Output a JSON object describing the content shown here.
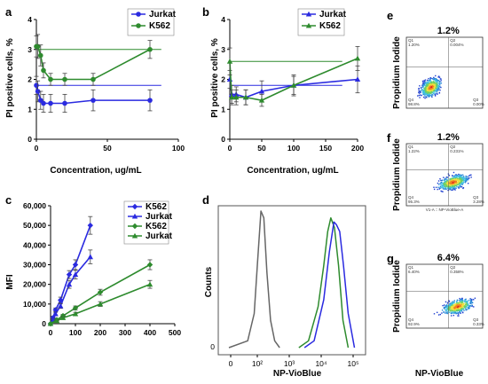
{
  "figure": {
    "panel_letters": [
      "a",
      "b",
      "c",
      "d",
      "e",
      "f",
      "g"
    ]
  },
  "chart_data": [
    {
      "panel": "a",
      "type": "line",
      "xlabel": "Concentration, ug/mL",
      "ylabel": "PI positive cells, %",
      "xlim": [
        0,
        100
      ],
      "ylim": [
        0,
        4
      ],
      "xticks": [
        0,
        50,
        100
      ],
      "yticks": [
        0,
        1,
        2,
        3,
        4
      ],
      "legend": "top-right",
      "series": [
        {
          "name": "Jurkat",
          "color": "#2a2ae0",
          "marker": "circle",
          "x": [
            0,
            1,
            3,
            5,
            10,
            20,
            40,
            80
          ],
          "y": [
            1.8,
            1.6,
            1.3,
            1.2,
            1.2,
            1.2,
            1.3,
            1.3
          ],
          "err": [
            0.3,
            0.35,
            0.3,
            0.3,
            0.3,
            0.3,
            0.35,
            0.35
          ],
          "baseline": 1.8
        },
        {
          "name": "K562",
          "color": "#2e8b2e",
          "marker": "circle",
          "x": [
            0,
            1,
            3,
            5,
            10,
            20,
            40,
            80
          ],
          "y": [
            3.1,
            3.1,
            2.8,
            2.3,
            2.0,
            2.0,
            2.0,
            3.0
          ],
          "err": [
            0.35,
            0.4,
            0.35,
            0.25,
            0.2,
            0.2,
            0.2,
            0.3
          ],
          "baseline": 3.0
        }
      ]
    },
    {
      "panel": "b",
      "type": "line",
      "xlabel": "Concentration, ug/mL",
      "ylabel": "PI positive cells, %",
      "xlim": [
        0,
        200
      ],
      "ylim": [
        0,
        4
      ],
      "xticks": [
        0,
        50,
        100,
        150,
        200
      ],
      "yticks": [
        0,
        1,
        2,
        3,
        4
      ],
      "legend": "top-right",
      "series": [
        {
          "name": "Jurkat",
          "color": "#2a2ae0",
          "marker": "triangle",
          "x": [
            0,
            3,
            10,
            25,
            50,
            100,
            200
          ],
          "y": [
            2.0,
            1.5,
            1.5,
            1.4,
            1.6,
            1.8,
            2.0
          ],
          "err": [
            0.3,
            0.3,
            0.25,
            0.25,
            0.35,
            0.3,
            0.45
          ],
          "baseline": 1.8
        },
        {
          "name": "K562",
          "color": "#2e8b2e",
          "marker": "triangle",
          "x": [
            0,
            3,
            10,
            25,
            50,
            100,
            200
          ],
          "y": [
            2.6,
            1.4,
            1.4,
            1.4,
            1.3,
            1.8,
            2.7
          ],
          "err": [
            0.45,
            0.25,
            0.25,
            0.25,
            0.2,
            0.35,
            0.4
          ],
          "baseline": 2.6
        }
      ]
    },
    {
      "panel": "c",
      "type": "line",
      "xlabel": "",
      "ylabel": "MFI",
      "xlim": [
        0,
        500
      ],
      "ylim": [
        0,
        60000
      ],
      "xticks": [
        0,
        100,
        200,
        300,
        400,
        500
      ],
      "yticks": [
        0,
        10000,
        20000,
        30000,
        40000,
        50000,
        60000
      ],
      "ytick_labels": [
        "0",
        "10,000",
        "20,000",
        "30,000",
        "40,000",
        "50,000",
        "60,000"
      ],
      "legend": "top-right",
      "series": [
        {
          "name": "K562",
          "color": "#2a2ae0",
          "marker": "diamond",
          "x": [
            0,
            10,
            20,
            40,
            75,
            100,
            160
          ],
          "y": [
            0,
            3000,
            7000,
            12000,
            25000,
            30000,
            50000
          ],
          "err": [
            0,
            800,
            1000,
            1500,
            2000,
            2500,
            4500
          ]
        },
        {
          "name": "Jurkat",
          "color": "#2a2ae0",
          "marker": "triangle",
          "x": [
            0,
            10,
            20,
            40,
            75,
            100,
            160
          ],
          "y": [
            0,
            2000,
            5000,
            9000,
            20000,
            25000,
            34000
          ],
          "err": [
            0,
            700,
            900,
            1200,
            2000,
            2200,
            3500
          ]
        },
        {
          "name": "K562",
          "color": "#2e8b2e",
          "marker": "diamond",
          "x": [
            0,
            25,
            50,
            100,
            200,
            400
          ],
          "y": [
            0,
            2000,
            4000,
            8000,
            16000,
            30000
          ],
          "err": [
            0,
            500,
            700,
            1000,
            1500,
            2500
          ]
        },
        {
          "name": "Jurkat",
          "color": "#2e8b2e",
          "marker": "triangle",
          "x": [
            0,
            25,
            50,
            100,
            200,
            400
          ],
          "y": [
            0,
            1500,
            3000,
            5000,
            10000,
            20000
          ],
          "err": [
            0,
            400,
            600,
            800,
            1200,
            2000
          ]
        }
      ]
    },
    {
      "panel": "d",
      "type": "line",
      "xlabel": "NP-VioBlue",
      "ylabel": "Counts",
      "x_scale": "log",
      "xtick_labels": [
        "0",
        "10²",
        "10³",
        "10⁴",
        "10⁵"
      ],
      "ytick_labels": [
        "0"
      ],
      "series": [
        {
          "color": "#666666",
          "x": [
            0,
            50,
            80,
            100,
            130,
            160,
            200,
            260,
            350,
            500
          ],
          "y": [
            0,
            5,
            25,
            60,
            100,
            95,
            55,
            20,
            5,
            0
          ]
        },
        {
          "color": "#2e8b2e",
          "x": [
            2000,
            4000,
            8000,
            12000,
            16000,
            20000,
            26000,
            35000,
            48000,
            70000
          ],
          "y": [
            0,
            5,
            30,
            60,
            85,
            95,
            88,
            60,
            20,
            0
          ]
        },
        {
          "color": "#2a2ae0",
          "x": [
            3000,
            6000,
            12000,
            18000,
            25000,
            30000,
            38000,
            50000,
            70000,
            110000
          ],
          "y": [
            0,
            5,
            35,
            70,
            92,
            90,
            85,
            60,
            25,
            0
          ]
        }
      ]
    },
    {
      "panel": "e",
      "type": "scatter",
      "ylabel": "Propidium Iodide",
      "percentage": "1.2%",
      "quadrant_labels": [
        "Q1",
        "Q2",
        "Q3",
        "Q4"
      ],
      "quadrant_values": [
        "1.20%",
        "0.004%",
        "0.00%",
        "98.8%"
      ]
    },
    {
      "panel": "f",
      "type": "scatter",
      "ylabel": "Propidium Iodide",
      "percentage": "1.2%",
      "quadrant_labels": [
        "Q1",
        "Q2",
        "Q3",
        "Q4"
      ],
      "quadrant_values": [
        "1.22%",
        "0.231%",
        "3.28%",
        "95.3%"
      ],
      "axis_caption": "V1-A :: NP-VioBlue-A"
    },
    {
      "panel": "g",
      "type": "scatter",
      "ylabel": "Propidium Iodide",
      "xlabel": "NP-VioBlue",
      "percentage": "6.4%",
      "quadrant_labels": [
        "Q1",
        "Q2",
        "Q3",
        "Q4"
      ],
      "quadrant_values": [
        "6.40%",
        "0.358%",
        "0.33%",
        "92.9%"
      ]
    }
  ]
}
